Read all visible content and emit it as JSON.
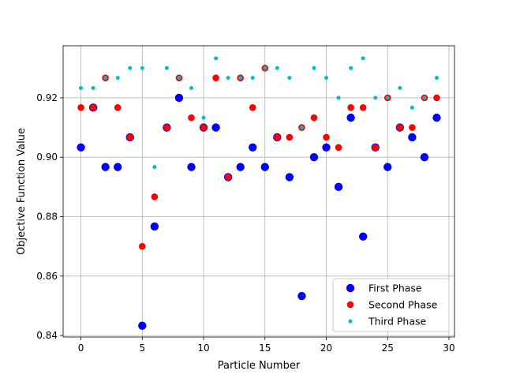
{
  "chart_data": {
    "type": "scatter",
    "xlabel": "Particle Number",
    "ylabel": "Objective Function Value",
    "xlim": [
      -1.45,
      30.45
    ],
    "ylim": [
      0.8395,
      0.9375
    ],
    "xticks": [
      0,
      5,
      10,
      15,
      20,
      25,
      30
    ],
    "yticks": [
      0.84,
      0.86,
      0.88,
      0.9,
      0.92
    ],
    "ytick_decimals": 2,
    "grid": true,
    "legend_position": "lower-right",
    "series": [
      {
        "name": "First Phase",
        "color": "#0000ff",
        "marker_size": "large",
        "x": [
          0,
          1,
          2,
          3,
          4,
          5,
          6,
          7,
          8,
          9,
          10,
          11,
          12,
          13,
          14,
          15,
          16,
          17,
          18,
          19,
          20,
          21,
          22,
          23,
          24,
          25,
          26,
          27,
          28,
          29
        ],
        "y": [
          0.9033,
          0.9167,
          0.8967,
          0.8967,
          0.9067,
          0.8433,
          0.8767,
          0.91,
          0.92,
          0.8967,
          0.91,
          0.91,
          0.8933,
          0.8967,
          0.9033,
          0.8967,
          0.9067,
          0.8933,
          0.8533,
          0.9,
          0.9033,
          0.89,
          0.9133,
          0.8733,
          0.9033,
          0.8967,
          0.91,
          0.9067,
          0.9,
          0.9133
        ]
      },
      {
        "name": "Second Phase",
        "color": "#ff0000",
        "marker_size": "medium",
        "x": [
          0,
          1,
          2,
          3,
          4,
          5,
          6,
          7,
          8,
          9,
          10,
          11,
          12,
          13,
          14,
          15,
          16,
          17,
          18,
          19,
          20,
          21,
          22,
          23,
          24,
          25,
          26,
          27,
          28,
          29
        ],
        "y": [
          0.9167,
          0.9167,
          0.9267,
          0.9167,
          0.9067,
          0.87,
          0.8867,
          0.91,
          0.9267,
          0.9133,
          0.91,
          0.9267,
          0.8933,
          0.9267,
          0.9167,
          0.93,
          0.9067,
          0.9067,
          0.91,
          0.9133,
          0.9067,
          0.9033,
          0.9167,
          0.9167,
          0.9033,
          0.92,
          0.91,
          0.91,
          0.92,
          0.92
        ]
      },
      {
        "name": "Third Phase",
        "color": "#00bfbf",
        "marker_size": "small",
        "x": [
          0,
          1,
          2,
          3,
          4,
          5,
          6,
          7,
          8,
          9,
          10,
          11,
          12,
          13,
          14,
          15,
          16,
          17,
          18,
          19,
          20,
          21,
          22,
          23,
          24,
          25,
          26,
          27,
          28,
          29
        ],
        "y": [
          0.9233,
          0.9233,
          0.9267,
          0.9267,
          0.93,
          0.93,
          0.8967,
          0.93,
          0.9267,
          0.9233,
          0.9133,
          0.9333,
          0.9267,
          0.9267,
          0.9267,
          0.93,
          0.93,
          0.9267,
          0.91,
          0.93,
          0.9267,
          0.92,
          0.93,
          0.9333,
          0.92,
          0.92,
          0.9233,
          0.9167,
          0.92,
          0.9267
        ]
      }
    ]
  }
}
